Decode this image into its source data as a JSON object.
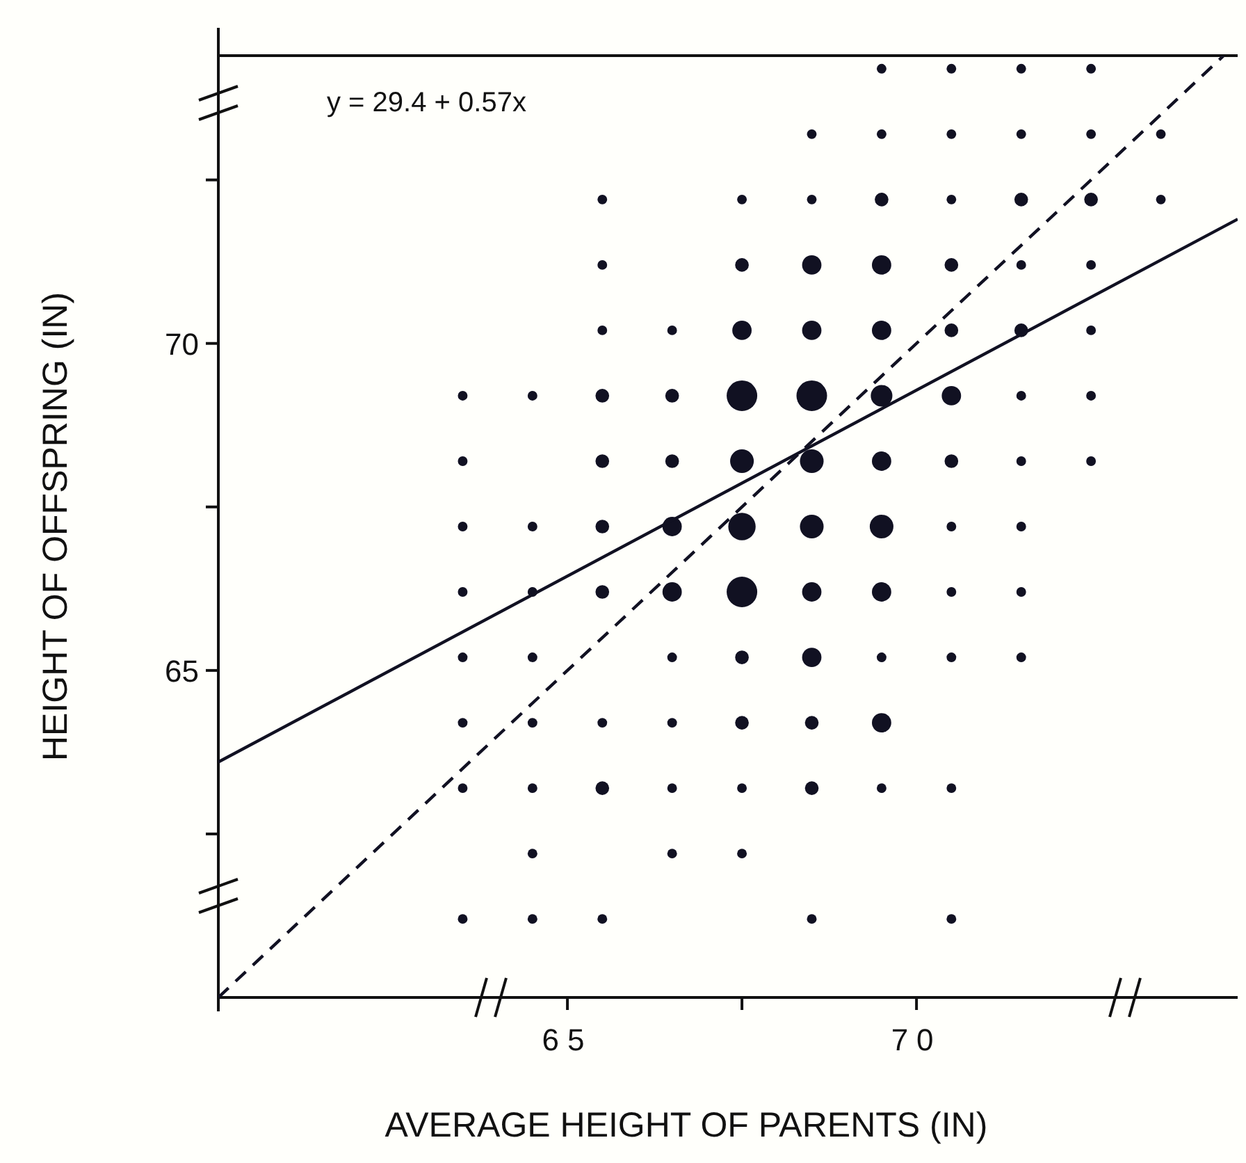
{
  "chart_data": {
    "type": "bubble",
    "xlabel": "AVERAGE HEIGHT OF PARENTS (IN)",
    "ylabel": "HEIGHT OF OFFSPRING (IN)",
    "xlim": [
      60,
      74.6
    ],
    "ylim": [
      60,
      74.4
    ],
    "xticks": [
      65,
      {
        "value": 67.5,
        "label": null
      },
      70
    ],
    "yticks": [
      {
        "value": 62.5,
        "label": null
      },
      65,
      {
        "value": 67.5,
        "label": null
      },
      70,
      {
        "value": 72.5,
        "label": null
      }
    ],
    "marker": "circle",
    "annotations": [
      "y = 29.4 + 0.57x"
    ],
    "series": [
      {
        "color": "#111122",
        "x": [
          69.5,
          70.5,
          71.5,
          72.5,
          68.5,
          69.5,
          70.5,
          71.5,
          72.5,
          73.5,
          65.5,
          67.5,
          68.5,
          69.5,
          70.5,
          71.5,
          72.5,
          73.5,
          65.5,
          67.5,
          68.5,
          69.5,
          70.5,
          71.5,
          72.5,
          65.5,
          66.5,
          67.5,
          68.5,
          69.5,
          70.5,
          71.5,
          72.5,
          63.5,
          64.5,
          65.5,
          66.5,
          67.5,
          68.5,
          69.5,
          70.5,
          71.5,
          72.5,
          63.5,
          65.5,
          66.5,
          67.5,
          68.5,
          69.5,
          70.5,
          71.5,
          72.5,
          63.5,
          64.5,
          65.5,
          66.5,
          67.5,
          68.5,
          69.5,
          70.5,
          71.5,
          63.5,
          64.5,
          65.5,
          66.5,
          67.5,
          68.5,
          69.5,
          70.5,
          71.5,
          63.5,
          64.5,
          66.5,
          67.5,
          68.5,
          69.5,
          70.5,
          71.5,
          63.5,
          64.5,
          65.5,
          66.5,
          67.5,
          68.5,
          69.5,
          63.5,
          64.5,
          65.5,
          66.5,
          67.5,
          68.5,
          69.5,
          70.5,
          64.5,
          66.5,
          67.5,
          63.5,
          64.5,
          65.5,
          68.5,
          70.5
        ],
        "values": [
          74.2,
          74.2,
          74.2,
          74.2,
          73.2,
          73.2,
          73.2,
          73.2,
          73.2,
          73.2,
          72.2,
          72.2,
          72.2,
          72.2,
          72.2,
          72.2,
          72.2,
          72.2,
          71.2,
          71.2,
          71.2,
          71.2,
          71.2,
          71.2,
          71.2,
          70.2,
          70.2,
          70.2,
          70.2,
          70.2,
          70.2,
          70.2,
          70.2,
          69.2,
          69.2,
          69.2,
          69.2,
          69.2,
          69.2,
          69.2,
          69.2,
          69.2,
          69.2,
          68.2,
          68.2,
          68.2,
          68.2,
          68.2,
          68.2,
          68.2,
          68.2,
          68.2,
          67.2,
          67.2,
          67.2,
          67.2,
          67.2,
          67.2,
          67.2,
          67.2,
          67.2,
          66.2,
          66.2,
          66.2,
          66.2,
          66.2,
          66.2,
          66.2,
          66.2,
          66.2,
          65.2,
          65.2,
          65.2,
          65.2,
          65.2,
          65.2,
          65.2,
          65.2,
          64.2,
          64.2,
          64.2,
          64.2,
          64.2,
          64.2,
          64.2,
          63.2,
          63.2,
          63.2,
          63.2,
          63.2,
          63.2,
          63.2,
          63.2,
          62.2,
          62.2,
          62.2,
          61.2,
          61.2,
          61.2,
          61.2,
          61.2
        ],
        "sizes": [
          0.1,
          0.1,
          0.1,
          0.1,
          0.1,
          0.1,
          0.1,
          0.1,
          0.1,
          0.1,
          0.1,
          0.1,
          0.1,
          0.2,
          0.1,
          0.2,
          0.2,
          0.1,
          0.1,
          0.2,
          0.4,
          0.4,
          0.2,
          0.1,
          0.1,
          0.1,
          0.1,
          0.4,
          0.4,
          0.4,
          0.2,
          0.2,
          0.1,
          0.1,
          0.1,
          0.2,
          0.2,
          1,
          1,
          0.5,
          0.4,
          0.1,
          0.1,
          0.1,
          0.2,
          0.2,
          0.6,
          0.6,
          0.4,
          0.2,
          0.1,
          0.1,
          0.1,
          0.1,
          0.2,
          0.4,
          0.8,
          0.6,
          0.6,
          0.1,
          0.1,
          0.1,
          0.1,
          0.2,
          0.4,
          1,
          0.4,
          0.4,
          0.1,
          0.1,
          0.1,
          0.1,
          0.1,
          0.2,
          0.4,
          0.1,
          0.1,
          0.1,
          0.1,
          0.1,
          0.1,
          0.1,
          0.2,
          0.2,
          0.4,
          0.1,
          0.1,
          0.2,
          0.1,
          0.1,
          0.2,
          0.1,
          0.1,
          0.1,
          0.1,
          0.1,
          0.1,
          0.1,
          0.1,
          0.1,
          0.1
        ]
      },
      {
        "type": "line",
        "color": "#111122",
        "line_style": "solid",
        "marker": "none",
        "x": [
          60,
          74.6
        ],
        "values": [
          63.6,
          71.9
        ]
      },
      {
        "type": "line",
        "color": "#111122",
        "line_style": "dashed",
        "marker": "none",
        "x": [
          60,
          74.4
        ],
        "values": [
          60,
          74.4
        ]
      }
    ]
  }
}
